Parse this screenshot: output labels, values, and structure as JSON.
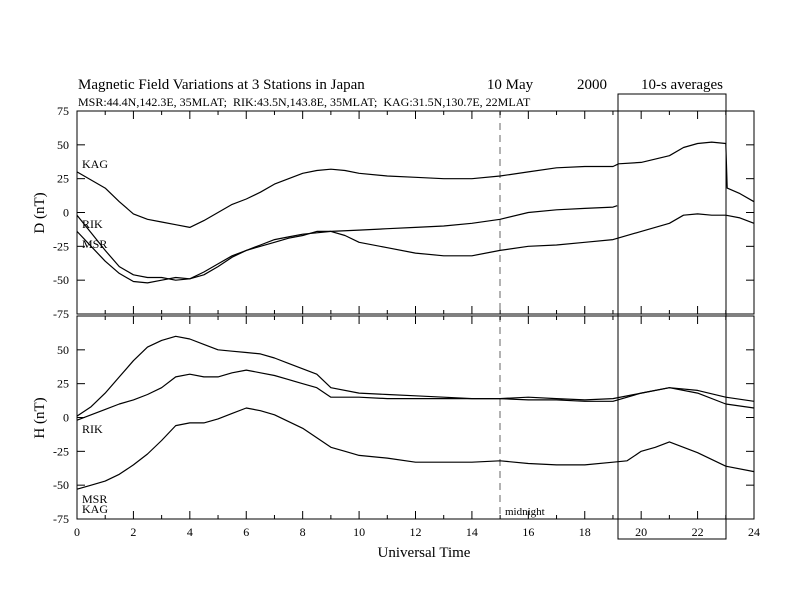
{
  "header": {
    "title": "Magnetic Field Variations at 3 Stations in Japan",
    "date": "10 May",
    "year": "2000",
    "averaging": "10-s averages",
    "stations_line": "MSR:44.4N,142.3E, 35MLAT;  RIK:43.5N,143.8E, 35MLAT;  KAG:31.5N,130.7E, 22MLAT"
  },
  "chart_data": [
    {
      "type": "line",
      "panel": "D",
      "ylabel": "D (nT)",
      "xlabel": "",
      "xlim": [
        0,
        24
      ],
      "ylim": [
        -75,
        75
      ],
      "yticks": [
        75,
        50,
        25,
        0,
        -25,
        -50,
        -75
      ],
      "grid": false,
      "series": [
        {
          "name": "KAG",
          "x": [
            0,
            0.5,
            1,
            1.5,
            2,
            2.5,
            3,
            3.5,
            4,
            4.5,
            5,
            5.5,
            6,
            6.5,
            7,
            7.5,
            8,
            8.5,
            9,
            9.5,
            10,
            11,
            12,
            13,
            14,
            15,
            16,
            17,
            18,
            19,
            19.2,
            20,
            21,
            21.5,
            22,
            22.5,
            23,
            23.05,
            23.5,
            24
          ],
          "y": [
            30,
            24,
            18,
            8,
            -1,
            -5,
            -7,
            -9,
            -11,
            -6,
            0,
            6,
            10,
            15,
            21,
            25,
            29,
            31,
            32,
            31,
            29,
            27,
            26,
            25,
            25,
            27,
            30,
            33,
            34,
            34,
            36,
            37,
            42,
            48,
            51,
            52,
            51,
            18,
            14,
            8
          ]
        },
        {
          "name": "RIK",
          "x": [
            0,
            0.5,
            1,
            1.5,
            2,
            2.5,
            3,
            3.5,
            4,
            4.5,
            5,
            5.5,
            6,
            6.5,
            7,
            7.5,
            8,
            8.5,
            9,
            10,
            11,
            12,
            13,
            14,
            15,
            16,
            17,
            18,
            19,
            19.15
          ],
          "y": [
            -2,
            -15,
            -28,
            -40,
            -46,
            -48,
            -48,
            -50,
            -49,
            -44,
            -38,
            -32,
            -28,
            -24,
            -20,
            -18,
            -16,
            -15,
            -14,
            -13,
            -12,
            -11,
            -10,
            -8,
            -5,
            0,
            2,
            3,
            4,
            5
          ]
        },
        {
          "name": "MSR",
          "x": [
            0,
            0.5,
            1,
            1.5,
            2,
            2.5,
            3,
            3.5,
            4,
            4.5,
            5,
            5.5,
            6,
            6.5,
            7,
            7.5,
            8,
            8.5,
            9,
            9.5,
            10,
            11,
            12,
            13,
            14,
            15,
            16,
            17,
            18,
            19,
            20,
            21,
            21.5,
            22,
            22.5,
            23,
            23.5,
            24
          ],
          "y": [
            -14,
            -25,
            -36,
            -45,
            -51,
            -52,
            -50,
            -48,
            -49,
            -46,
            -40,
            -33,
            -28,
            -25,
            -22,
            -19,
            -17,
            -14,
            -14,
            -17,
            -22,
            -26,
            -30,
            -32,
            -32,
            -28,
            -25,
            -24,
            -22,
            -20,
            -14,
            -8,
            -2,
            -1,
            -2,
            -2,
            -4,
            -8
          ]
        }
      ]
    },
    {
      "type": "line",
      "panel": "H",
      "ylabel": "H (nT)",
      "xlabel": "Universal Time",
      "xlim": [
        0,
        24
      ],
      "ylim": [
        -75,
        75
      ],
      "yticks": [
        50,
        25,
        0,
        -25,
        -50,
        -75
      ],
      "xticks": [
        0,
        2,
        4,
        6,
        8,
        10,
        12,
        14,
        16,
        18,
        20,
        22,
        24
      ],
      "grid": false,
      "series": [
        {
          "name": "KAG",
          "x": [
            0,
            0.5,
            1,
            1.5,
            2,
            2.5,
            3,
            3.5,
            4,
            4.5,
            5,
            5.5,
            6,
            6.5,
            7,
            7.5,
            8,
            8.5,
            9,
            10,
            11,
            12,
            13,
            14,
            15,
            16,
            17,
            18,
            19,
            20,
            21,
            22,
            23,
            24
          ],
          "y": [
            1,
            8,
            18,
            30,
            42,
            52,
            57,
            60,
            58,
            54,
            50,
            49,
            48,
            47,
            44,
            40,
            36,
            32,
            22,
            18,
            17,
            16,
            15,
            14,
            14,
            15,
            14,
            13,
            14,
            18,
            22,
            20,
            15,
            12
          ]
        },
        {
          "name": "RIK",
          "x": [
            0,
            0.5,
            1,
            1.5,
            2,
            2.5,
            3,
            3.5,
            4,
            4.5,
            5,
            5.5,
            6,
            6.5,
            7,
            7.5,
            8,
            8.5,
            9,
            10,
            11,
            12,
            13,
            14,
            15,
            16,
            17,
            18,
            19,
            20,
            21,
            22,
            23,
            24
          ],
          "y": [
            -2,
            2,
            6,
            10,
            13,
            17,
            22,
            30,
            32,
            30,
            30,
            33,
            35,
            33,
            31,
            28,
            25,
            22,
            15,
            15,
            14,
            14,
            14,
            14,
            14,
            13,
            13,
            12,
            12,
            18,
            22,
            18,
            10,
            7
          ]
        },
        {
          "name": "MSR",
          "x": [
            0,
            0.5,
            1,
            1.5,
            2,
            2.5,
            3,
            3.5,
            4,
            4.5,
            5,
            5.5,
            6,
            6.5,
            7,
            7.5,
            8,
            8.5,
            9,
            9.5,
            10,
            11,
            12,
            13,
            14,
            15,
            16,
            17,
            18,
            19,
            19.5,
            20,
            20.5,
            21,
            21.5,
            22,
            23,
            24
          ],
          "y": [
            -53,
            -50,
            -47,
            -42,
            -35,
            -27,
            -17,
            -6,
            -4,
            -4,
            -1,
            3,
            7,
            5,
            2,
            -3,
            -8,
            -15,
            -22,
            -25,
            -28,
            -30,
            -33,
            -33,
            -33,
            -32,
            -34,
            -35,
            -35,
            -33,
            -32,
            -25,
            -22,
            -18,
            -22,
            -26,
            -36,
            -40
          ]
        }
      ]
    }
  ],
  "station_labels": {
    "D": [
      "KAG",
      "RIK",
      "MSR"
    ],
    "H": [
      "RIK",
      "MSR",
      "KAG"
    ]
  },
  "annotations": {
    "midnight_label": "midnight",
    "midnight_ut": 15,
    "highlight_ut_range": [
      19.2,
      23
    ]
  },
  "colors": {
    "line": "#000000",
    "midnight_line": "#999999",
    "background": "#ffffff"
  }
}
